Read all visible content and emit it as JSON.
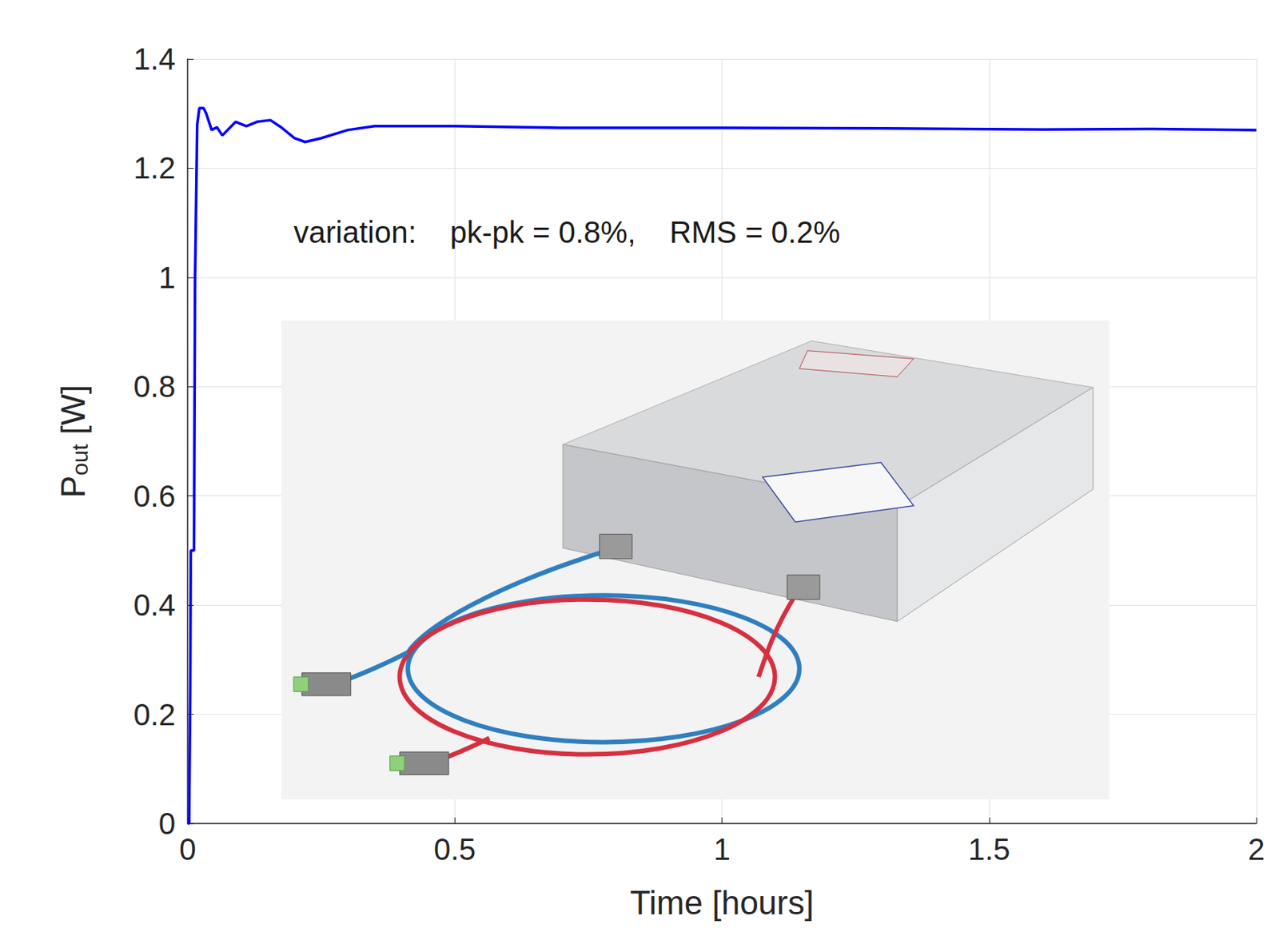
{
  "chart_data": {
    "type": "line",
    "xlabel": "Time [hours]",
    "ylabel": {
      "text": "P",
      "subscript": "out",
      "suffix": " [W]"
    },
    "annotation": "variation:    pk-pk = 0.8%,    RMS = 0.2%",
    "x": [
      0,
      0.003,
      0.005,
      0.006,
      0.012,
      0.014,
      0.018,
      0.022,
      0.03,
      0.035,
      0.045,
      0.055,
      0.065,
      0.075,
      0.09,
      0.11,
      0.13,
      0.155,
      0.175,
      0.2,
      0.22,
      0.25,
      0.3,
      0.35,
      0.5,
      0.7,
      1.0,
      1.3,
      1.6,
      1.8,
      2.0
    ],
    "values": [
      0,
      0,
      0.25,
      0.5,
      0.5,
      1.0,
      1.28,
      1.31,
      1.31,
      1.3,
      1.27,
      1.275,
      1.26,
      1.27,
      1.285,
      1.277,
      1.285,
      1.288,
      1.275,
      1.255,
      1.248,
      1.255,
      1.27,
      1.277,
      1.277,
      1.274,
      1.274,
      1.273,
      1.271,
      1.272,
      1.27
    ],
    "color": "#0000ff",
    "xlim": [
      0,
      2
    ],
    "xticks": [
      0,
      0.5,
      1,
      1.5,
      2
    ],
    "ylim": [
      0,
      1.4
    ],
    "yticks": [
      0,
      0.2,
      0.4,
      0.6,
      0.8,
      1,
      1.2,
      1.4
    ],
    "grid": true
  }
}
